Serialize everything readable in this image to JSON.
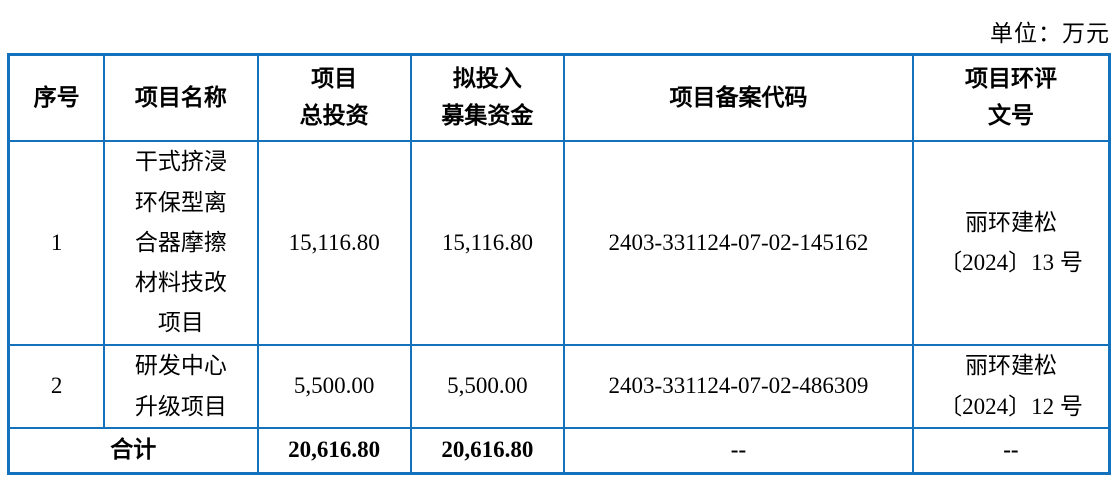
{
  "page": {
    "unit_label": "单位：万元"
  },
  "table": {
    "columns": {
      "no": "序号",
      "name": "项目名称",
      "total_investment": "项目\n总投资",
      "raised_funds": "拟投入\n募集资金",
      "filing_code": "项目备案代码",
      "eia_doc_no": "项目环评\n文号"
    },
    "rows": [
      {
        "no": "1",
        "name": "干式挤浸\n环保型离\n合器摩擦\n材料技改\n项目",
        "total_investment": "15,116.80",
        "raised_funds": "15,116.80",
        "filing_code": "2403-331124-07-02-145162",
        "eia_doc_no": "丽环建松\n〔2024〕13 号"
      },
      {
        "no": "2",
        "name": "研发中心\n升级项目",
        "total_investment": "5,500.00",
        "raised_funds": "5,500.00",
        "filing_code": "2403-331124-07-02-486309",
        "eia_doc_no": "丽环建松\n〔2024〕12 号"
      }
    ],
    "total_row": {
      "label": "合计",
      "total_investment": "20,616.80",
      "raised_funds": "20,616.80",
      "filing_code": "--",
      "eia_doc_no": "--"
    }
  },
  "colors": {
    "table_border": "#1472bc",
    "text": "#000000",
    "background": "#ffffff"
  }
}
